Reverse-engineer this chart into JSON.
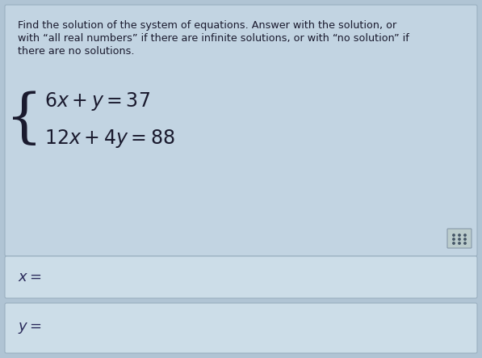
{
  "bg_color": "#b0c4d4",
  "main_panel_color": "#c2d4e2",
  "input_box_color": "#ccdde8",
  "border_color": "#9aafc0",
  "instruction_text_line1": "Find the solution of the system of equations. Answer with the solution, or",
  "instruction_text_line2": "with “all real numbers” if there are infinite solutions, or with “no solution” if",
  "instruction_text_line3": "there are no solutions.",
  "eq1": "$6x + y = 37$",
  "eq2": "$12x + 4y = 88$",
  "label_x": "$x =$",
  "label_y": "$y =$",
  "text_color": "#1a1a2e",
  "eq_color": "#1a1a2e",
  "label_color": "#2a2a5a",
  "instruction_fontsize": 9.2,
  "eq_fontsize": 17,
  "label_fontsize": 13,
  "brace_fontsize": 52
}
